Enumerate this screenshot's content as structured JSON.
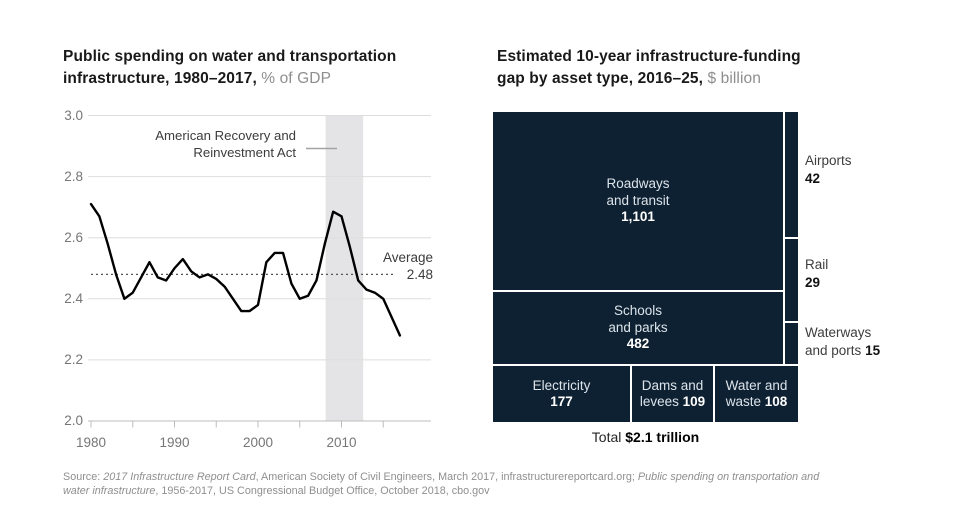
{
  "left_chart": {
    "title_line1": "Public spending on water and transportation",
    "title_line2_bold": "infrastructure, 1980–2017,",
    "title_line2_light": "% of GDP",
    "annotation_line1": "American Recovery and",
    "annotation_line2": "Reinvestment Act",
    "average_label": "Average",
    "average_value": "2.48"
  },
  "right_chart": {
    "title_line1": "Estimated 10-year infrastructure-funding",
    "title_line2_bold": "gap by asset type, 2016–25,",
    "title_line2_light": "$ billion",
    "total_label": "Total",
    "total_value": "$2.1 trillion"
  },
  "footer": {
    "prefix": "Source: ",
    "italic1": "2017 Infrastructure Report Card",
    "mid": ", American Society of Civil Engineers, March 2017, infrastructurereportcard.org; ",
    "italic2a": "Public spending on transportation and",
    "italic2b": "water infrastructure",
    "suffix": ", 1956-2017, US Congressional Budget Office, October 2018, cbo.gov"
  },
  "colors": {
    "treemap_cell": "#0e2132",
    "line": "#000000",
    "grid": "#dedede",
    "axis": "#bdbdbd",
    "band": "#e4e4e6",
    "dashed": "#555555",
    "leader": "#a3a3a3",
    "tick_label": "#767676",
    "title_light": "#8e8e8e"
  },
  "chart_data": [
    {
      "type": "line",
      "title": "Public spending on water and transportation infrastructure, 1980–2017, % of GDP",
      "x_start": 1980,
      "x_end": 2017,
      "values": [
        2.71,
        2.67,
        2.58,
        2.48,
        2.4,
        2.42,
        2.47,
        2.52,
        2.47,
        2.46,
        2.5,
        2.53,
        2.49,
        2.47,
        2.48,
        2.465,
        2.44,
        2.4,
        2.36,
        2.36,
        2.38,
        2.52,
        2.55,
        2.55,
        2.45,
        2.4,
        2.41,
        2.46,
        2.58,
        2.685,
        2.67,
        2.57,
        2.46,
        2.43,
        2.42,
        2.4,
        2.34,
        2.28
      ],
      "average": 2.48,
      "ylim": [
        2.0,
        3.0
      ],
      "ylabel": "% of GDP",
      "yticks": [
        "3.0",
        "2.8",
        "2.6",
        "2.4",
        "2.2",
        "2.0"
      ],
      "xticks": [
        1980,
        1990,
        2000,
        2010
      ],
      "minor_xtick_step": 5,
      "grid": true,
      "shaded_region": {
        "from": 2008.1,
        "to": 2012.6,
        "label": "American Recovery and Reinvestment Act"
      }
    },
    {
      "type": "treemap",
      "title": "Estimated 10-year infrastructure-funding gap by asset type, 2016–25, $ billion",
      "total": 2100,
      "items": [
        {
          "name": "Roadways and transit",
          "value": 1101,
          "line1": "Roadways",
          "line2": "and transit",
          "value_label": "1,101"
        },
        {
          "name": "Schools and parks",
          "value": 482,
          "line1": "Schools",
          "line2": "and parks",
          "value_label": "482"
        },
        {
          "name": "Electricity",
          "value": 177,
          "line1": "Electricity",
          "value_label": "177"
        },
        {
          "name": "Dams and levees",
          "value": 109,
          "line1": "Dams and",
          "line2": "levees",
          "value_label": "109"
        },
        {
          "name": "Water and waste",
          "value": 108,
          "line1": "Water and",
          "line2": "waste",
          "value_label": "108"
        },
        {
          "name": "Airports",
          "value": 42,
          "line1": "Airports",
          "value_label": "42"
        },
        {
          "name": "Rail",
          "value": 29,
          "line1": "Rail",
          "value_label": "29"
        },
        {
          "name": "Waterways and ports",
          "value": 15,
          "line1": "Waterways",
          "line2": "and ports",
          "value_label": "15"
        }
      ]
    }
  ]
}
